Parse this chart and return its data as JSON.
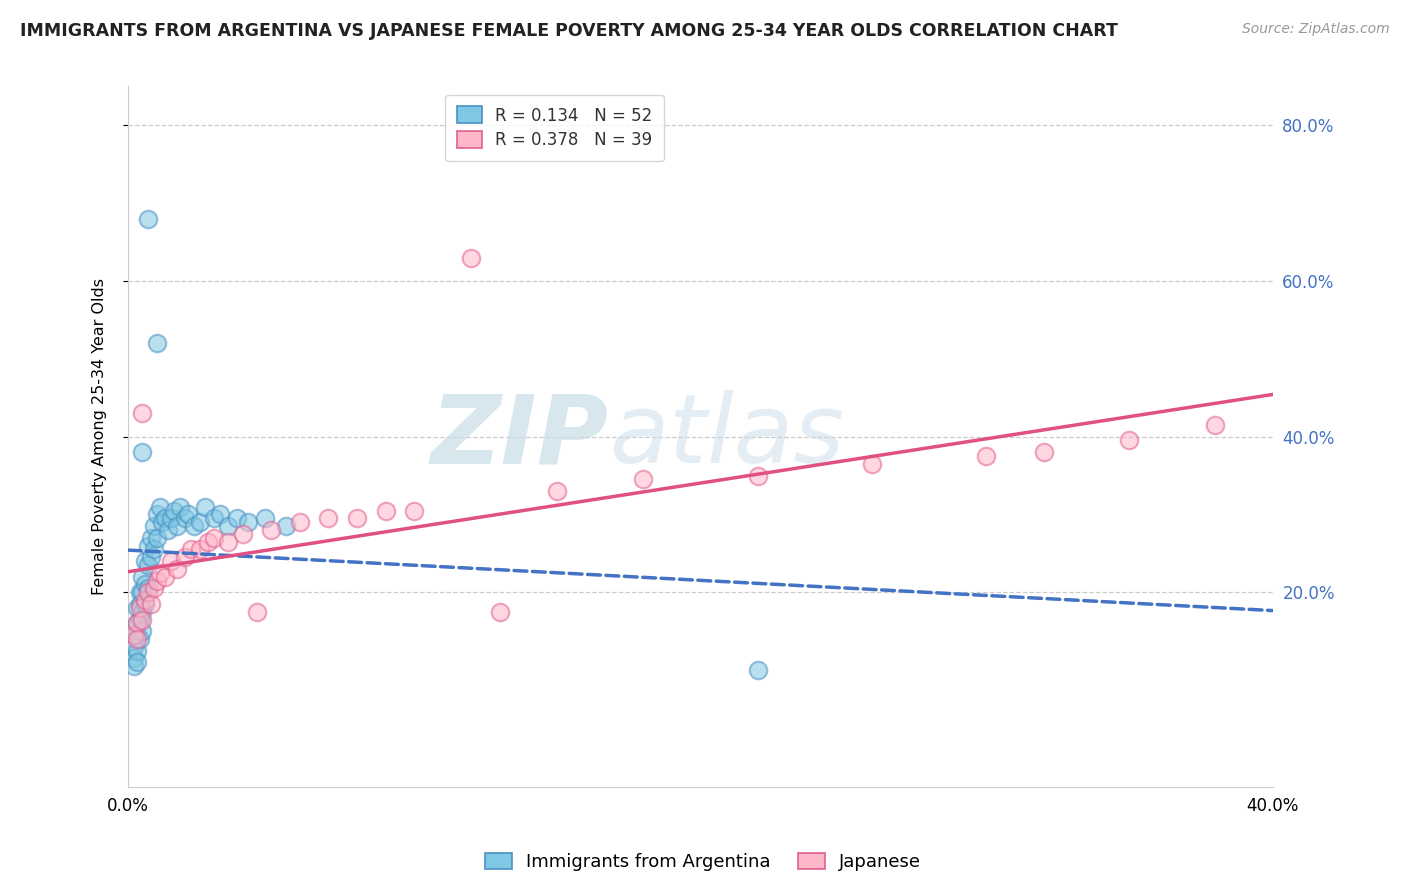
{
  "title": "IMMIGRANTS FROM ARGENTINA VS JAPANESE FEMALE POVERTY AMONG 25-34 YEAR OLDS CORRELATION CHART",
  "source": "Source: ZipAtlas.com",
  "ylabel": "Female Poverty Among 25-34 Year Olds",
  "xlim": [
    0.0,
    0.4
  ],
  "ylim": [
    -0.05,
    0.85
  ],
  "color_argentina": "#7ec8e3",
  "color_argentina_edge": "#4a90c4",
  "color_japanese": "#ffb6c8",
  "color_japanese_edge": "#e06090",
  "color_argentina_line": "#4472c4",
  "color_japanese_line": "#e05080",
  "R_argentina": 0.134,
  "N_argentina": 52,
  "R_japanese": 0.378,
  "N_japanese": 39,
  "legend_R_color": "#4472c4",
  "legend_N_color": "#4472c4",
  "watermark_zip": "ZIP",
  "watermark_atlas": "atlas",
  "background_color": "#ffffff",
  "grid_color": "#cccccc",
  "ytick_color": "#4472c4",
  "title_fontsize": 12.5,
  "source_fontsize": 10
}
